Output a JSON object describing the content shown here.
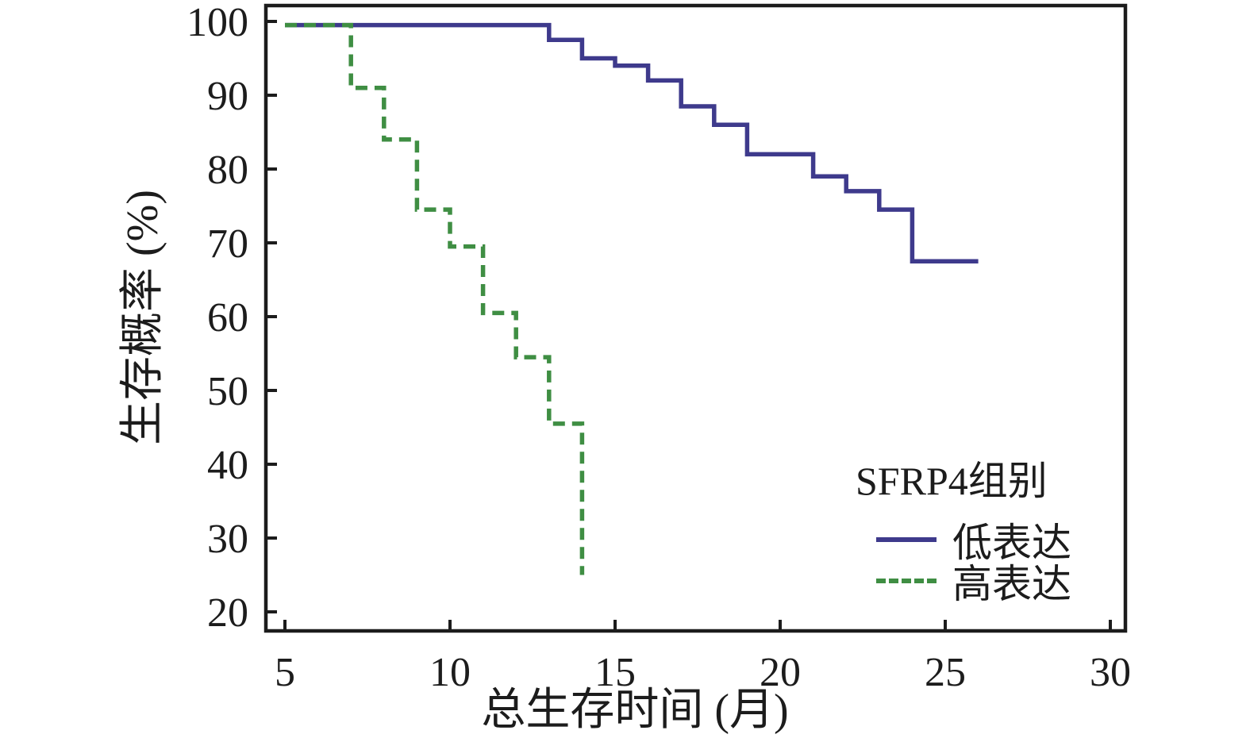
{
  "figure": {
    "background_color": "#ffffff",
    "axis_color": "#1c1c1c",
    "text_color": "#1c1c1c"
  },
  "legend": {
    "title": "SFRP4组别",
    "items": [
      {
        "label": "低表达",
        "style": "solid",
        "color": "#3e3a8c"
      },
      {
        "label": "高表达",
        "style": "dashed",
        "color": "#3f8e43"
      }
    ]
  },
  "chart_data": {
    "type": "line",
    "subtype": "kaplan-meier-step-survival",
    "title": "",
    "xlabel": "总生存时间 (月)",
    "ylabel": "生存概率 (%)",
    "xlim": [
      4.4,
      30.5
    ],
    "ylim": [
      17.5,
      102
    ],
    "x_ticks": [
      5,
      10,
      15,
      20,
      25,
      30
    ],
    "y_ticks": [
      20,
      30,
      40,
      50,
      60,
      70,
      80,
      90,
      100
    ],
    "grid": false,
    "legend_position": "lower-right-inside",
    "series": [
      {
        "name": "低表达",
        "line": "solid",
        "color": "#3e3a8c",
        "points": [
          [
            5,
            99.5
          ],
          [
            13,
            97.5
          ],
          [
            14,
            95
          ],
          [
            15,
            94
          ],
          [
            16,
            92
          ],
          [
            17,
            88.5
          ],
          [
            18,
            86
          ],
          [
            19,
            82
          ],
          [
            21,
            79
          ],
          [
            22,
            77
          ],
          [
            23,
            74.5
          ],
          [
            24,
            67.5
          ]
        ],
        "end_x": 26
      },
      {
        "name": "高表达",
        "line": "dashed",
        "color": "#3f8e43",
        "points": [
          [
            5,
            99.5
          ],
          [
            7,
            91
          ],
          [
            8,
            84
          ],
          [
            9,
            74.5
          ],
          [
            10,
            69.5
          ],
          [
            11,
            60.5
          ],
          [
            12,
            54.5
          ],
          [
            13,
            45.5
          ],
          [
            14,
            25
          ]
        ],
        "end_x": 14
      }
    ]
  }
}
